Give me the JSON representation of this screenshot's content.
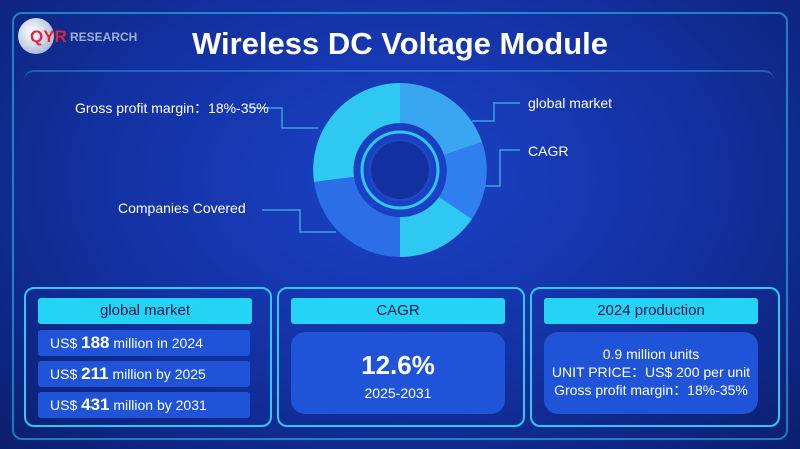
{
  "logo": {
    "qyr": "QYR",
    "research": "RESEARCH"
  },
  "title": "Wireless DC Voltage Module",
  "callouts": {
    "gross_profit": "Gross profit margin：18%-35%",
    "global_market": "global market",
    "cagr": "CAGR",
    "companies": "Companies Covered"
  },
  "panels": {
    "global_market": {
      "header": "global market",
      "rows": [
        {
          "prefix": "US$",
          "value": "188",
          "suffix": "million in 2024"
        },
        {
          "prefix": "US$",
          "value": "211",
          "suffix": "million by 2025"
        },
        {
          "prefix": "US$",
          "value": "431",
          "suffix": "million by 2031"
        }
      ]
    },
    "cagr": {
      "header": "CAGR",
      "value": "12.6%",
      "period": "2025-2031"
    },
    "production": {
      "header": "2024 production",
      "lines": [
        "0.9 million units",
        "UNIT PRICE：US$ 200 per unit",
        "Gross profit margin：18%-35%"
      ]
    }
  },
  "colors": {
    "accent": "#25d4f5",
    "panel": "#1f54d8",
    "background": "#12309f"
  }
}
